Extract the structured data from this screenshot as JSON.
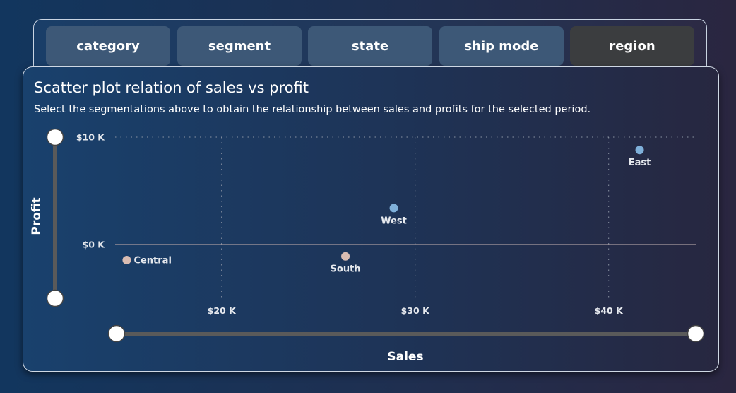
{
  "tabs": [
    {
      "label": "category",
      "active": false
    },
    {
      "label": "segment",
      "active": false
    },
    {
      "label": "state",
      "active": false
    },
    {
      "label": "ship mode",
      "active": false
    },
    {
      "label": "region",
      "active": true
    }
  ],
  "panel": {
    "title": "Scatter plot relation of sales vs profit",
    "subtitle": "Select the segmentations above to obtain the relationship between sales and profits for the selected period."
  },
  "colors": {
    "positive": "#7fb0da",
    "negative": "#d9bcb2",
    "tab": "#3d5877",
    "tab_active": "#3b3d3f"
  },
  "chart_data": {
    "type": "scatter",
    "xlabel": "Sales",
    "ylabel": "Profit",
    "xlim": [
      14500,
      44500
    ],
    "ylim": [
      -5000,
      10000
    ],
    "x_ticks": [
      {
        "value": 20000,
        "label": "$20 K"
      },
      {
        "value": 30000,
        "label": "$30 K"
      },
      {
        "value": 40000,
        "label": "$40 K"
      }
    ],
    "y_ticks": [
      {
        "value": 0,
        "label": "$0 K"
      },
      {
        "value": 10000,
        "label": "$10 K"
      }
    ],
    "points": [
      {
        "label": "Central",
        "x": 15100,
        "y": -1450
      },
      {
        "label": "South",
        "x": 26400,
        "y": -1100
      },
      {
        "label": "West",
        "x": 28900,
        "y": 3400
      },
      {
        "label": "East",
        "x": 41600,
        "y": 8800
      }
    ],
    "grid": true
  }
}
